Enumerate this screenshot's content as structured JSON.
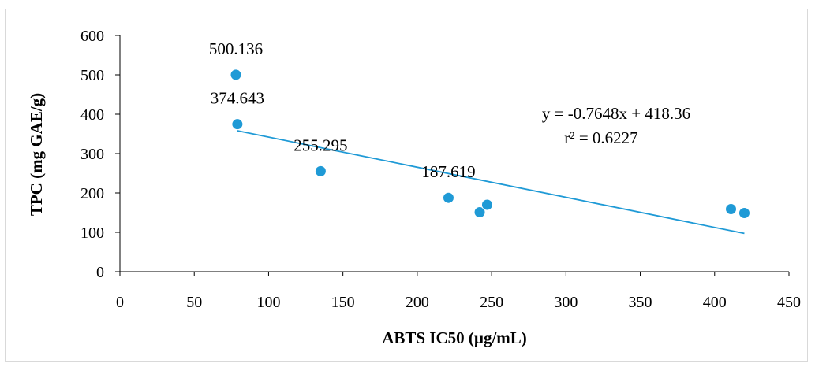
{
  "chart_data": {
    "type": "scatter",
    "xlabel": "ABTS IC50 (µg/mL)",
    "ylabel": "TPC (mg GAE/g)",
    "xlim": [
      0,
      450
    ],
    "ylim": [
      0,
      600
    ],
    "x_ticks": [
      0,
      50,
      100,
      150,
      200,
      250,
      300,
      350,
      400,
      450
    ],
    "y_ticks": [
      0,
      100,
      200,
      300,
      400,
      500,
      600
    ],
    "x_tick_labels": [
      "0",
      "50",
      "100",
      "150",
      "200",
      "250",
      "300",
      "350",
      "400",
      "450"
    ],
    "y_tick_labels": [
      "0",
      "100",
      "200",
      "300",
      "400",
      "500",
      "600"
    ],
    "grid": false,
    "legend": "none",
    "series": [
      {
        "color": "#1f9ad6",
        "points": [
          {
            "x": 78,
            "y": 500.136,
            "label": "500.136"
          },
          {
            "x": 79,
            "y": 374.643,
            "label": "374.643"
          },
          {
            "x": 135,
            "y": 255.295,
            "label": "255.295"
          },
          {
            "x": 221,
            "y": 187.619,
            "label": "187.619"
          },
          {
            "x": 242,
            "y": 151,
            "label": ""
          },
          {
            "x": 247,
            "y": 170,
            "label": ""
          },
          {
            "x": 411,
            "y": 159,
            "label": ""
          },
          {
            "x": 420,
            "y": 149,
            "label": ""
          }
        ]
      }
    ],
    "trendline": {
      "color": "#1f9ad6",
      "slope": -0.7648,
      "intercept": 418.36,
      "x_start": 79,
      "x_end": 420,
      "equation": "y = -0.7648x + 418.36",
      "r2": "r² = 0.6227"
    }
  }
}
